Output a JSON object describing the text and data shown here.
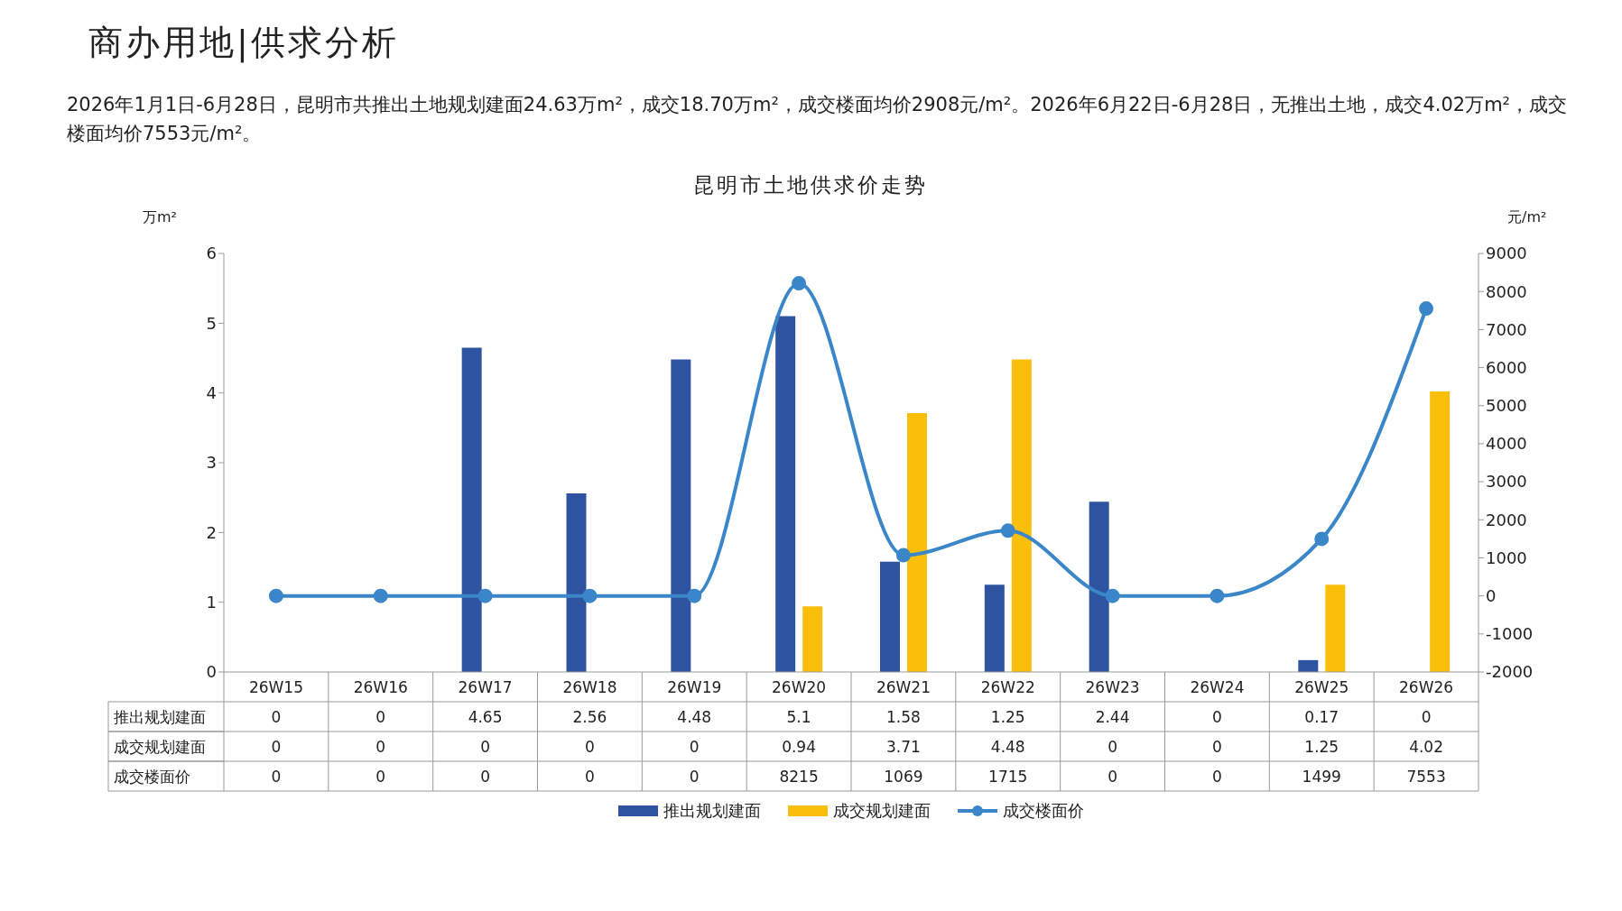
{
  "chart_data": {
    "type": "bar",
    "title": "昆明市土地供求价走势",
    "annotations": [
      "商办用地|供求分析",
      "2026年1月1日-6月28日，昆明市共推出土地规划建面24.63万m²，成交18.70万m²，成交楼面均价2908元/m²。2026年6月22日-6月28日，无推出土地，成交4.02万m²，成交楼面均价7553元/m²。"
    ],
    "ylabel": "万m²",
    "y2label": "元/m²",
    "categories": [
      "26W15",
      "26W16",
      "26W17",
      "26W18",
      "26W19",
      "26W20",
      "26W21",
      "26W22",
      "26W23",
      "26W24",
      "26W25",
      "26W26"
    ],
    "series": [
      {
        "name": "推出规划建面",
        "color": "#2e54a1",
        "values": [
          0,
          0,
          4.65,
          2.56,
          4.48,
          5.1,
          1.58,
          1.25,
          2.44,
          0,
          0.17,
          0
        ]
      },
      {
        "name": "成交规划建面",
        "color": "#fbbf0b",
        "values": [
          0,
          0,
          0,
          0,
          0,
          0.94,
          3.71,
          4.48,
          0,
          0,
          1.25,
          4.02
        ]
      },
      {
        "name": "成交楼面价",
        "type": "line",
        "axis": "y2",
        "color": "#3a86c8",
        "marker": "circle",
        "line_style": "solid",
        "values": [
          0,
          0,
          0,
          0,
          0,
          8215,
          1069,
          1715,
          0,
          0,
          1499,
          7553
        ]
      }
    ],
    "ylim": [
      0,
      6
    ],
    "yticks": [
      0,
      1,
      2,
      3,
      4,
      5,
      6
    ],
    "y2lim": [
      -2000,
      9000
    ],
    "y2ticks": [
      -2000,
      -1000,
      0,
      1000,
      2000,
      3000,
      4000,
      5000,
      6000,
      7000,
      8000,
      9000
    ],
    "data_labels": true,
    "legend": "bottom",
    "grid": false
  }
}
